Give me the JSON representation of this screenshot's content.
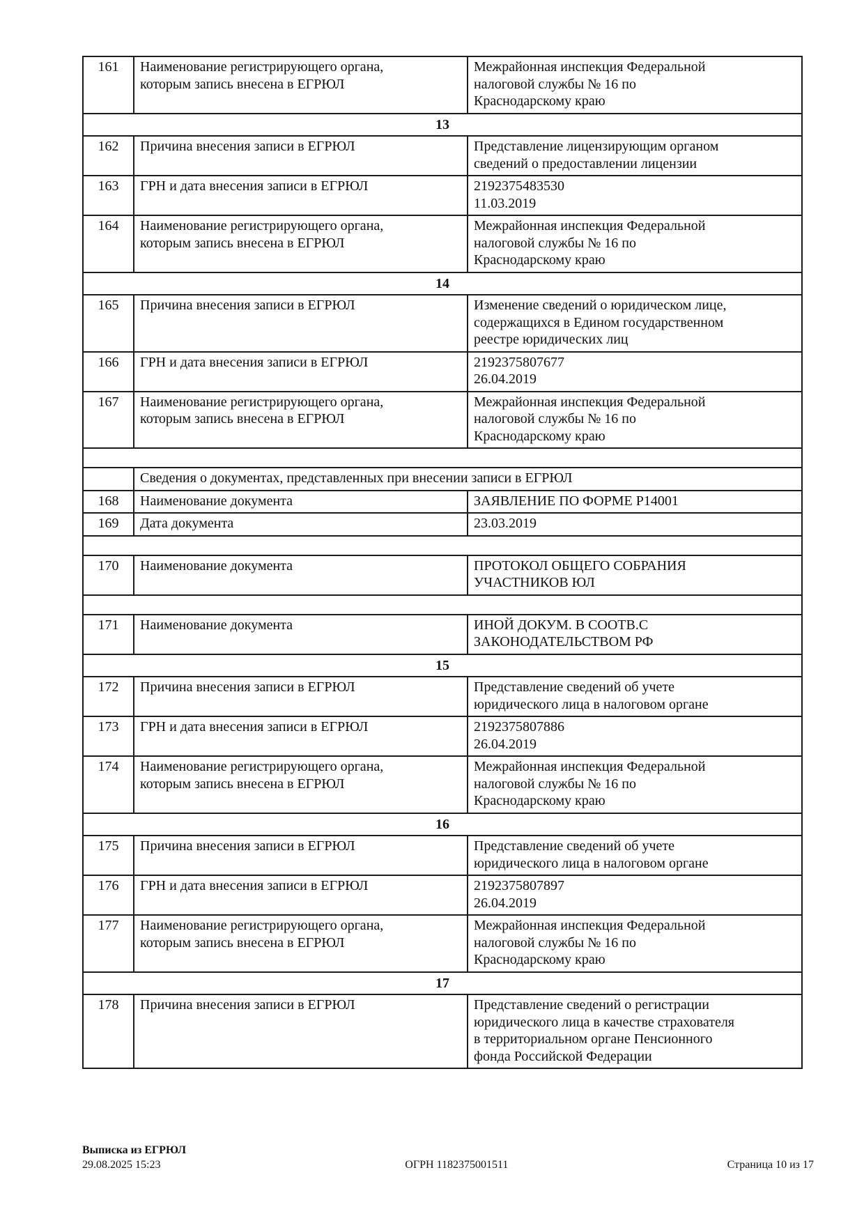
{
  "document": {
    "rows": [
      {
        "type": "data",
        "num": "161",
        "label": "Наименование регистрирующего органа,\nкоторым запись внесена в ЕГРЮЛ",
        "value": "Межрайонная инспекция Федеральной\nналоговой службы № 16 по\nКраснодарскому краю"
      },
      {
        "type": "section",
        "num": "13"
      },
      {
        "type": "data",
        "num": "162",
        "label": "Причина внесения записи в ЕГРЮЛ",
        "value": "Представление лицензирующим органом\nсведений о предоставлении лицензии"
      },
      {
        "type": "data",
        "num": "163",
        "label": "ГРН и дата внесения записи в ЕГРЮЛ",
        "value": "2192375483530\n11.03.2019"
      },
      {
        "type": "data",
        "num": "164",
        "label": "Наименование регистрирующего органа,\nкоторым запись внесена в ЕГРЮЛ",
        "value": "Межрайонная инспекция Федеральной\nналоговой службы № 16 по\nКраснодарскому краю"
      },
      {
        "type": "section",
        "num": "14"
      },
      {
        "type": "data",
        "num": "165",
        "label": "Причина внесения записи в ЕГРЮЛ",
        "value": "Изменение сведений о юридическом лице,\nсодержащихся в Едином государственном\nреестре юридических лиц"
      },
      {
        "type": "data",
        "num": "166",
        "label": "ГРН и дата внесения записи в ЕГРЮЛ",
        "value": "2192375807677\n26.04.2019"
      },
      {
        "type": "data",
        "num": "167",
        "label": "Наименование регистрирующего органа,\nкоторым запись внесена в ЕГРЮЛ",
        "value": "Межрайонная инспекция Федеральной\nналоговой службы № 16 по\nКраснодарскому краю"
      },
      {
        "type": "spacer"
      },
      {
        "type": "subheader",
        "text": "Сведения о документах, представленных при внесении записи в ЕГРЮЛ"
      },
      {
        "type": "data",
        "num": "168",
        "label": "Наименование документа",
        "value": "ЗАЯВЛЕНИЕ ПО ФОРМЕ Р14001"
      },
      {
        "type": "data",
        "num": "169",
        "label": "Дата документа",
        "value": "23.03.2019"
      },
      {
        "type": "spacer"
      },
      {
        "type": "data",
        "num": "170",
        "label": "Наименование документа",
        "value": "ПРОТОКОЛ ОБЩЕГО СОБРАНИЯ\nУЧАСТНИКОВ ЮЛ"
      },
      {
        "type": "spacer"
      },
      {
        "type": "data",
        "num": "171",
        "label": "Наименование документа",
        "value": "ИНОЙ ДОКУМ. В СООТВ.С\nЗАКОНОДАТЕЛЬСТВОМ РФ"
      },
      {
        "type": "section",
        "num": "15"
      },
      {
        "type": "data",
        "num": "172",
        "label": "Причина внесения записи в ЕГРЮЛ",
        "value": "Представление сведений об учете\nюридического лица в налоговом органе"
      },
      {
        "type": "data",
        "num": "173",
        "label": "ГРН и дата внесения записи в ЕГРЮЛ",
        "value": "2192375807886\n26.04.2019"
      },
      {
        "type": "data",
        "num": "174",
        "label": "Наименование регистрирующего органа,\nкоторым запись внесена в ЕГРЮЛ",
        "value": "Межрайонная инспекция Федеральной\nналоговой службы № 16 по\nКраснодарскому краю"
      },
      {
        "type": "section",
        "num": "16"
      },
      {
        "type": "data",
        "num": "175",
        "label": "Причина внесения записи в ЕГРЮЛ",
        "value": "Представление сведений об учете\nюридического лица в налоговом органе"
      },
      {
        "type": "data",
        "num": "176",
        "label": "ГРН и дата внесения записи в ЕГРЮЛ",
        "value": "2192375807897\n26.04.2019"
      },
      {
        "type": "data",
        "num": "177",
        "label": "Наименование регистрирующего органа,\nкоторым запись внесена в ЕГРЮЛ",
        "value": "Межрайонная инспекция Федеральной\nналоговой службы № 16 по\nКраснодарскому краю"
      },
      {
        "type": "section",
        "num": "17"
      },
      {
        "type": "data",
        "num": "178",
        "label": "Причина внесения записи в ЕГРЮЛ",
        "value": "Представление сведений о регистрации\nюридического лица в качестве страхователя\nв территориальном органе Пенсионного\nфонда Российской Федерации"
      }
    ],
    "footer": {
      "doc_type": "Выписка из ЕГРЮЛ",
      "timestamp": "29.08.2025 15:23",
      "ogrn": "ОГРН 1182375001511",
      "page": "Страница 10 из 17"
    }
  }
}
